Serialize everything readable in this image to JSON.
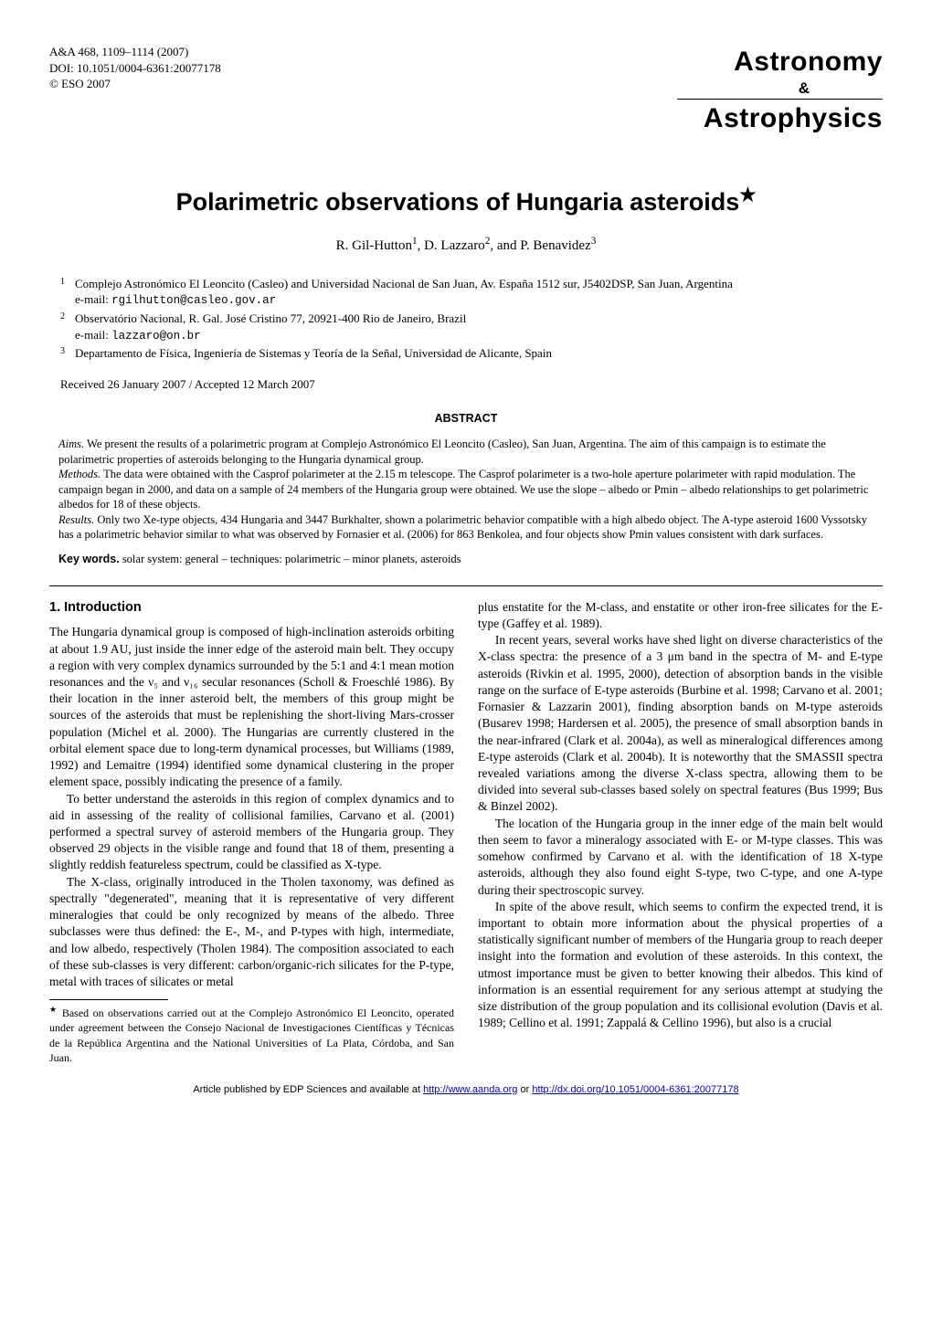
{
  "header": {
    "ref": "A&A 468, 1109–1114 (2007)",
    "doi": "DOI: 10.1051/0004-6361:20077178",
    "copyright": "© ESO 2007",
    "logo_top": "Astronomy",
    "logo_amp": "&",
    "logo_bottom": "Astrophysics"
  },
  "title": "Polarimetric observations of Hungaria asteroids",
  "title_star": "★",
  "authors": {
    "a1_name": "R. Gil-Hutton",
    "a1_sup": "1",
    "a2_name": ", D. Lazzaro",
    "a2_sup": "2",
    "a3_name": ", and P. Benavidez",
    "a3_sup": "3"
  },
  "affiliations": [
    {
      "num": "1",
      "text": "Complejo Astronómico El Leoncito (Casleo) and Universidad Nacional de San Juan, Av. España 1512 sur, J5402DSP, San Juan, Argentina",
      "email_prefix": "e-mail: ",
      "email": "rgilhutton@casleo.gov.ar"
    },
    {
      "num": "2",
      "text": "Observatório Nacional, R. Gal. José Cristino 77, 20921-400 Rio de Janeiro, Brazil",
      "email_prefix": "e-mail: ",
      "email": "lazzaro@on.br"
    },
    {
      "num": "3",
      "text": "Departamento de Física, Ingeniería de Sistemas y Teoría de la Señal, Universidad de Alicante, Spain",
      "email_prefix": "",
      "email": ""
    }
  ],
  "received": "Received 26 January 2007 / Accepted 12 March 2007",
  "abstract_heading": "ABSTRACT",
  "abstract": {
    "aims_label": "Aims.",
    "aims": " We present the results of a polarimetric program at Complejo Astronómico El Leoncito (Casleo), San Juan, Argentina. The aim of this campaign is to estimate the polarimetric properties of asteroids belonging to the Hungaria dynamical group.",
    "methods_label": "Methods.",
    "methods": " The data were obtained with the Casprof polarimeter at the 2.15 m telescope. The Casprof polarimeter is a two-hole aperture polarimeter with rapid modulation. The campaign began in 2000, and data on a sample of 24 members of the Hungaria group were obtained. We use the slope – albedo or Pmin – albedo relationships to get polarimetric albedos for 18 of these objects.",
    "results_label": "Results.",
    "results": " Only two Xe-type objects, 434 Hungaria and 3447 Burkhalter, shown a polarimetric behavior compatible with a high albedo object. The A-type asteroid 1600 Vyssotsky has a polarimetric behavior similar to what was observed by Fornasier et al. (2006) for 863 Benkolea, and four objects show Pmin values consistent with dark surfaces."
  },
  "keywords_label": "Key words.",
  "keywords": " solar system: general – techniques: polarimetric – minor planets, asteroids",
  "section1_heading": "1. Introduction",
  "col_left": {
    "p1": "The Hungaria dynamical group is composed of high-inclination asteroids orbiting at about 1.9 AU, just inside the inner edge of the asteroid main belt. They occupy a region with very complex dynamics surrounded by the 5:1 and 4:1 mean motion resonances and the ν₅ and ν₁₆ secular resonances (Scholl & Froeschlé 1986). By their location in the inner asteroid belt, the members of this group might be sources of the asteroids that must be replenishing the short-living Mars-crosser population (Michel et al. 2000). The Hungarias are currently clustered in the orbital element space due to long-term dynamical processes, but Williams (1989, 1992) and Lemaitre (1994) identified some dynamical clustering in the proper element space, possibly indicating the presence of a family.",
    "p2": "To better understand the asteroids in this region of complex dynamics and to aid in assessing of the reality of collisional families, Carvano et al. (2001) performed a spectral survey of asteroid members of the Hungaria group. They observed 29 objects in the visible range and found that 18 of them, presenting a slightly reddish featureless spectrum, could be classified as X-type.",
    "p3": "The X-class, originally introduced in the Tholen taxonomy, was defined as spectrally \"degenerated\", meaning that it is representative of very different mineralogies that could be only recognized by means of the albedo. Three subclasses were thus defined: the E-, M-, and P-types with high, intermediate, and low albedo, respectively (Tholen 1984). The composition associated to each of these sub-classes is very different: carbon/organic-rich silicates for the P-type, metal with traces of silicates or metal"
  },
  "footnote": {
    "star": "★",
    "text": " Based on observations carried out at the Complejo Astronómico El Leoncito, operated under agreement between the Consejo Nacional de Investigaciones Científicas y Técnicas de la República Argentina and the National Universities of La Plata, Córdoba, and San Juan."
  },
  "col_right": {
    "p1": "plus enstatite for the M-class, and enstatite or other iron-free silicates for the E-type (Gaffey et al. 1989).",
    "p2": "In recent years, several works have shed light on diverse characteristics of the X-class spectra: the presence of a 3 μm band in the spectra of M- and E-type asteroids (Rivkin et al. 1995, 2000), detection of absorption bands in the visible range on the surface of E-type asteroids (Burbine et al. 1998; Carvano et al. 2001; Fornasier & Lazzarin 2001), finding absorption bands on M-type asteroids (Busarev 1998; Hardersen et al. 2005), the presence of small absorption bands in the near-infrared (Clark et al. 2004a), as well as mineralogical differences among E-type asteroids (Clark et al. 2004b). It is noteworthy that the SMASSII spectra revealed variations among the diverse X-class spectra, allowing them to be divided into several sub-classes based solely on spectral features (Bus 1999; Bus & Binzel 2002).",
    "p3": "The location of the Hungaria group in the inner edge of the main belt would then seem to favor a mineralogy associated with E- or M-type classes. This was somehow confirmed by Carvano et al. with the identification of 18 X-type asteroids, although they also found eight S-type, two C-type, and one A-type during their spectroscopic survey.",
    "p4": "In spite of the above result, which seems to confirm the expected trend, it is important to obtain more information about the physical properties of a statistically significant number of members of the Hungaria group to reach deeper insight into the formation and evolution of these asteroids. In this context, the utmost importance must be given to better knowing their albedos. This kind of information is an essential requirement for any serious attempt at studying the size distribution of the group population and its collisional evolution (Davis et al. 1989; Cellino et al. 1991; Zappalá & Cellino 1996), but also is a crucial"
  },
  "footer": {
    "prefix": "Article published by EDP Sciences and available at ",
    "link1": "http://www.aanda.org",
    "mid": " or ",
    "link2": "http://dx.doi.org/10.1051/0004-6361:20077178"
  }
}
